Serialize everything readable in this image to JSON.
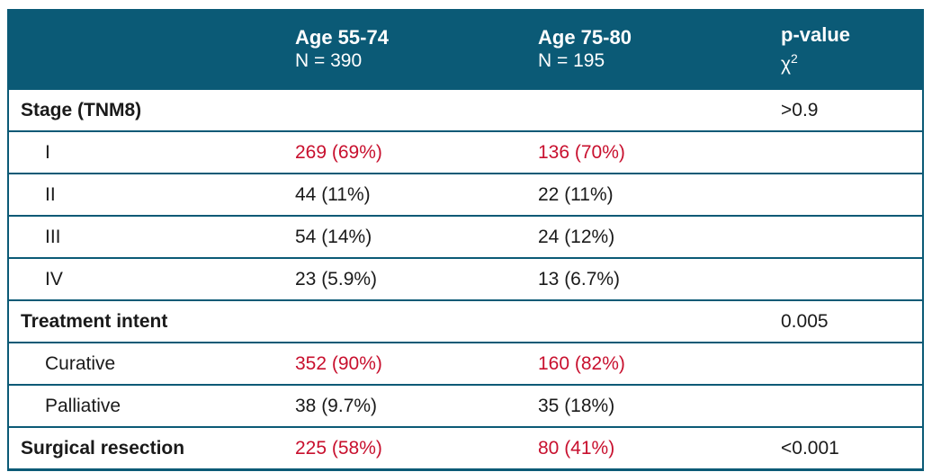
{
  "colors": {
    "header_bg": "#0B5A76",
    "border": "#0B5A76",
    "highlight_red": "#C8102E",
    "body_text": "#1a1a1a",
    "header_text": "#ffffff"
  },
  "header": {
    "col_label": "",
    "col_age_55_74": {
      "title": "Age 55-74",
      "subtitle": "N = 390"
    },
    "col_age_75_80": {
      "title": "Age 75-80",
      "subtitle": "N = 195"
    },
    "col_p_value": {
      "title": "p-value",
      "chi_base": "χ",
      "chi_sup": "2"
    }
  },
  "rows": [
    {
      "label": "Stage (TNM8)",
      "v1": "",
      "v2": "",
      "p": ">0.9"
    },
    {
      "label": "I",
      "v1": "269 (69%)",
      "v2": "136 (70%)",
      "p": ""
    },
    {
      "label": "II",
      "v1": "44 (11%)",
      "v2": "22 (11%)",
      "p": ""
    },
    {
      "label": "III",
      "v1": "54 (14%)",
      "v2": "24 (12%)",
      "p": ""
    },
    {
      "label": "IV",
      "v1": "23 (5.9%)",
      "v2": "13 (6.7%)",
      "p": ""
    },
    {
      "label": "Treatment intent",
      "v1": "",
      "v2": "",
      "p": "0.005"
    },
    {
      "label": "Curative",
      "v1": "352 (90%)",
      "v2": "160 (82%)",
      "p": ""
    },
    {
      "label": "Palliative",
      "v1": "38 (9.7%)",
      "v2": "35 (18%)",
      "p": ""
    },
    {
      "label": "Surgical resection",
      "v1": "225 (58%)",
      "v2": "80 (41%)",
      "p": "<0.001"
    }
  ],
  "chart_data": {
    "type": "table",
    "columns": [
      "",
      "Age 55-74 (N = 390)",
      "Age 75-80 (N = 195)",
      "p-value χ2"
    ],
    "rows": [
      [
        "Stage (TNM8)",
        "",
        "",
        ">0.9"
      ],
      [
        "I",
        "269 (69%)",
        "136 (70%)",
        ""
      ],
      [
        "II",
        "44 (11%)",
        "22 (11%)",
        ""
      ],
      [
        "III",
        "54 (14%)",
        "24 (12%)",
        ""
      ],
      [
        "IV",
        "23 (5.9%)",
        "13 (6.7%)",
        ""
      ],
      [
        "Treatment intent",
        "",
        "",
        "0.005"
      ],
      [
        "Curative",
        "352 (90%)",
        "160 (82%)",
        ""
      ],
      [
        "Palliative",
        "38 (9.7%)",
        "35 (18%)",
        ""
      ],
      [
        "Surgical resection",
        "225 (58%)",
        "80 (41%)",
        "<0.001"
      ]
    ],
    "highlighted_red_cells": [
      [
        "I",
        "269 (69%)"
      ],
      [
        "I",
        "136 (70%)"
      ],
      [
        "Curative",
        "352 (90%)"
      ],
      [
        "Curative",
        "160 (82%)"
      ],
      [
        "Surgical resection",
        "225 (58%)"
      ],
      [
        "Surgical resection",
        "80 (41%)"
      ]
    ],
    "legend_position": "none",
    "grid": "horizontal-rules"
  }
}
